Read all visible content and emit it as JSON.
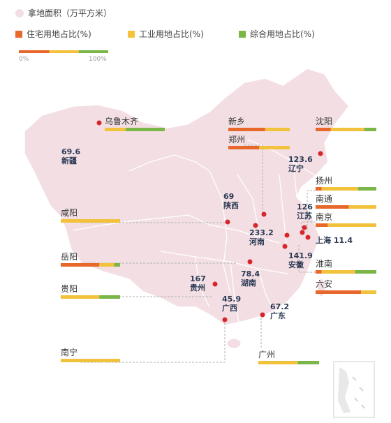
{
  "legend": {
    "area": "拿地面积（万平方米）",
    "residential": "住宅用地占比(%)",
    "industrial": "工业用地占比(%)",
    "mixed": "综合用地占比(%)",
    "scale_min": "0%",
    "scale_max": "100%"
  },
  "colors": {
    "map": "#f3dfe3",
    "map_stroke": "#ffffff",
    "dot": "#d7262b",
    "residential": "#e8672a",
    "industrial": "#f2c23c",
    "mixed": "#7ab648",
    "leader": "#b0b0b0",
    "text": "#2b3a55"
  },
  "chart_data": {
    "type": "map",
    "area_unit": "万平方米",
    "provinces": [
      {
        "value": "69.6",
        "name": "新疆"
      },
      {
        "value": "123.6",
        "name": "辽宁"
      },
      {
        "value": "69",
        "name": "陕西"
      },
      {
        "value": "126",
        "name": "江苏"
      },
      {
        "value": "233.2",
        "name": "河南"
      },
      {
        "value": "141.9",
        "name": "安徽"
      },
      {
        "value": "78.4",
        "name": "湖南"
      },
      {
        "value": "167",
        "name": "贵州"
      },
      {
        "value": "45.9",
        "name": "广西"
      },
      {
        "value": "67.2",
        "name": "广东"
      },
      {
        "value": "11.4",
        "name": "上海"
      }
    ],
    "cities": [
      {
        "name": "乌鲁木齐",
        "residential": 0,
        "industrial": 35,
        "mixed": 65
      },
      {
        "name": "新乡",
        "residential": 60,
        "industrial": 40,
        "mixed": 0
      },
      {
        "name": "郑州",
        "residential": 50,
        "industrial": 50,
        "mixed": 0
      },
      {
        "name": "沈阳",
        "residential": 25,
        "industrial": 55,
        "mixed": 20
      },
      {
        "name": "扬州",
        "residential": 10,
        "industrial": 60,
        "mixed": 30
      },
      {
        "name": "南通",
        "residential": 55,
        "industrial": 45,
        "mixed": 0
      },
      {
        "name": "南京",
        "residential": 20,
        "industrial": 80,
        "mixed": 0
      },
      {
        "name": "咸阳",
        "residential": 0,
        "industrial": 100,
        "mixed": 0
      },
      {
        "name": "岳阳",
        "residential": 65,
        "industrial": 25,
        "mixed": 10
      },
      {
        "name": "淮南",
        "residential": 10,
        "industrial": 55,
        "mixed": 35
      },
      {
        "name": "贵阳",
        "residential": 0,
        "industrial": 65,
        "mixed": 35
      },
      {
        "name": "六安",
        "residential": 75,
        "industrial": 25,
        "mixed": 0
      },
      {
        "name": "南宁",
        "residential": 0,
        "industrial": 100,
        "mixed": 0
      },
      {
        "name": "广州",
        "residential": 0,
        "industrial": 65,
        "mixed": 35
      }
    ]
  }
}
